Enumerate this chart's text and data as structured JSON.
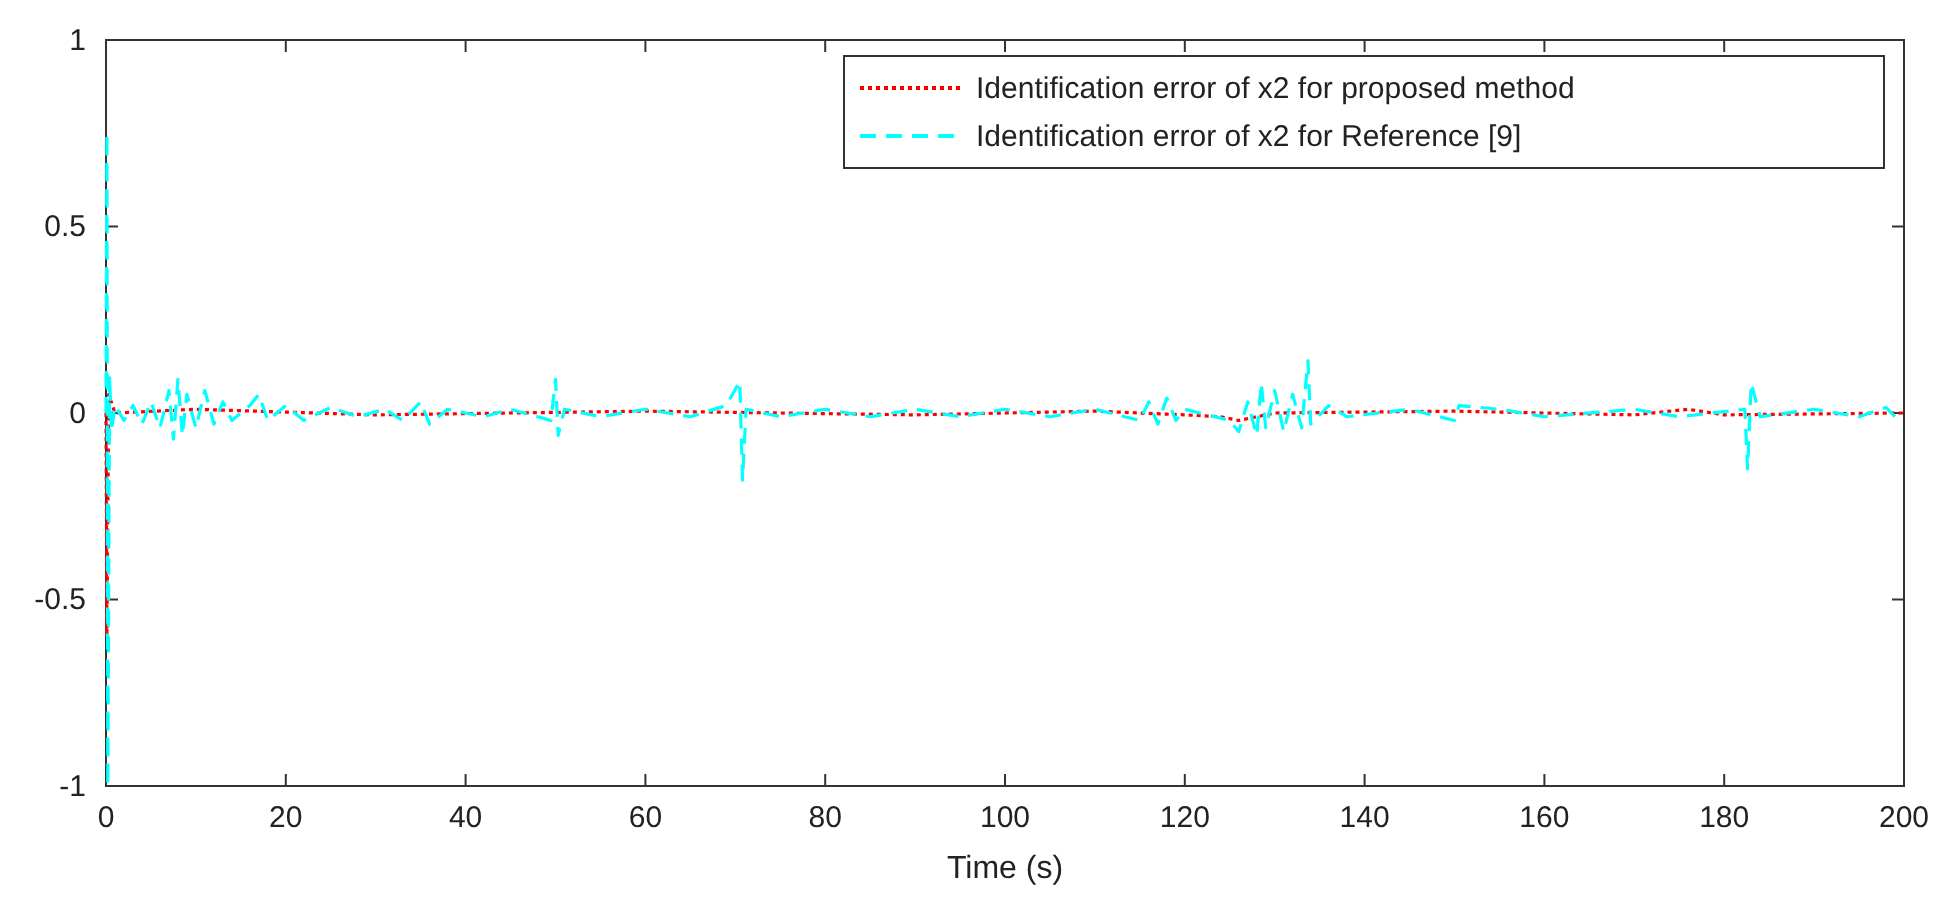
{
  "chart_data": {
    "type": "line",
    "xlabel": "Time (s)",
    "xlim": [
      0,
      200
    ],
    "xticks": [
      0,
      20,
      40,
      60,
      80,
      100,
      120,
      140,
      160,
      180,
      200
    ],
    "ylim": [
      -1,
      1
    ],
    "yticks": [
      -1,
      -0.5,
      0,
      0.5,
      1
    ],
    "grid": false,
    "legend": "top right",
    "series": [
      {
        "name": "Identification error of x2 for proposed method",
        "color": "#ff0000",
        "line_style": "dotted",
        "x": [
          0,
          0.1,
          0.3,
          1,
          10,
          30,
          60,
          90,
          110,
          120,
          124,
          126,
          128,
          130,
          150,
          170,
          176,
          180,
          200
        ],
        "values": [
          0,
          -0.6,
          0.05,
          0,
          0.01,
          -0.005,
          0.005,
          -0.005,
          0.005,
          -0.005,
          -0.01,
          -0.02,
          -0.01,
          0,
          0.005,
          -0.005,
          0.01,
          -0.005,
          0
        ]
      },
      {
        "name": "Identification error of x2 for Reference [9]",
        "color": "#00ffff",
        "line_style": "dashed",
        "x": [
          0,
          0.1,
          0.2,
          0.4,
          0.6,
          1,
          2,
          3,
          4,
          5,
          6,
          7,
          7.5,
          8,
          8.5,
          9,
          10,
          11,
          12,
          13,
          14,
          16,
          17,
          18,
          20,
          22,
          25,
          28,
          31,
          33,
          35,
          36,
          38,
          42,
          45,
          49.5,
          50,
          50.3,
          51,
          55,
          60,
          65,
          69,
          70.5,
          70.8,
          71.2,
          75,
          80,
          85,
          90,
          95,
          100,
          105,
          110,
          115,
          116,
          117,
          118,
          119,
          120,
          125,
          126,
          127,
          128,
          128.5,
          129,
          130,
          131,
          132,
          133,
          133.7,
          134,
          136,
          138,
          145,
          150,
          150.5,
          155,
          160,
          170,
          175,
          182.3,
          182.6,
          183,
          184,
          190,
          195,
          198,
          199,
          200
        ],
        "values": [
          0,
          0.75,
          -1,
          0.1,
          -0.05,
          0.02,
          -0.02,
          0.02,
          -0.03,
          0.03,
          -0.04,
          0.06,
          -0.07,
          0.09,
          -0.06,
          0.05,
          -0.04,
          0.06,
          -0.03,
          0.03,
          -0.02,
          0.02,
          0.05,
          -0.02,
          0.02,
          -0.02,
          0.015,
          -0.01,
          0.01,
          -0.02,
          0.03,
          -0.03,
          0.01,
          -0.01,
          0.01,
          -0.02,
          0.09,
          -0.06,
          0.01,
          -0.01,
          0.01,
          -0.01,
          0.02,
          0.085,
          -0.18,
          0.01,
          -0.01,
          0.01,
          -0.01,
          0.01,
          -0.01,
          0.01,
          -0.01,
          0.01,
          -0.02,
          0.03,
          -0.03,
          0.04,
          -0.02,
          0.01,
          -0.02,
          -0.05,
          0.03,
          -0.06,
          0.08,
          -0.04,
          0.06,
          -0.05,
          0.05,
          -0.04,
          0.14,
          -0.03,
          0.02,
          -0.01,
          0.01,
          -0.02,
          0.02,
          0.01,
          -0.01,
          0.01,
          -0.01,
          0.01,
          -0.15,
          0.08,
          -0.01,
          0.01,
          -0.01,
          0.015,
          -0.01,
          0
        ]
      }
    ]
  }
}
